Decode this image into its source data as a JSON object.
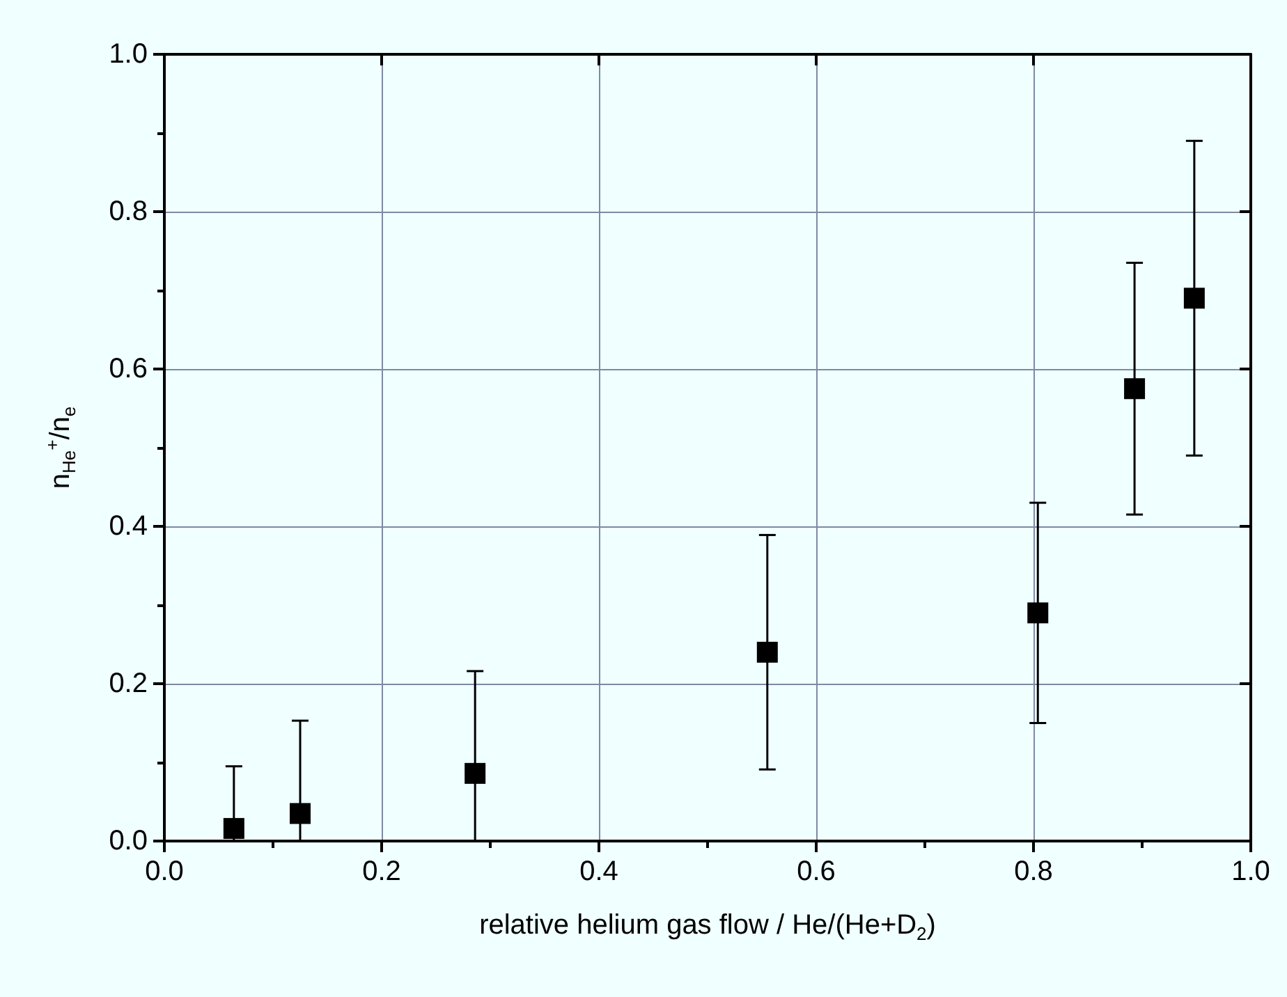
{
  "chart_data": {
    "type": "scatter",
    "xlabel": "relative helium gas flow / He/(He+D$_{2}$)",
    "ylabel": "n$_{He}$$^{+}$/n$_{e}$",
    "x": [
      0.064,
      0.125,
      0.286,
      0.555,
      0.804,
      0.893,
      0.948
    ],
    "series": [
      {
        "color": "#000000",
        "values": [
          0.016,
          0.035,
          0.086,
          0.24,
          0.29,
          0.575,
          0.69
        ],
        "errors": [
          [
            0,
            0.095
          ],
          [
            0,
            0.153
          ],
          [
            0,
            0.216
          ],
          0.149,
          0.14,
          0.16,
          0.2
        ]
      }
    ],
    "marker": "square",
    "xlim": [
      0,
      1
    ],
    "xticks": [
      {
        "value": 0,
        "label": "0.0"
      },
      {
        "value": 0.2,
        "label": "0.2"
      },
      {
        "value": 0.4,
        "label": "0.4"
      },
      {
        "value": 0.6,
        "label": "0.6"
      },
      {
        "value": 0.8,
        "label": "0.8"
      },
      {
        "value": 1,
        "label": "1.0"
      }
    ],
    "ylim": [
      0,
      1
    ],
    "yticks": [
      {
        "value": 0,
        "label": "0.0"
      },
      {
        "value": 0.2,
        "label": "0.2"
      },
      {
        "value": 0.4,
        "label": "0.4"
      },
      {
        "value": 0.6,
        "label": "0.6"
      },
      {
        "value": 0.8,
        "label": "0.8"
      },
      {
        "value": 1,
        "label": "1.0"
      }
    ],
    "grid": true
  }
}
